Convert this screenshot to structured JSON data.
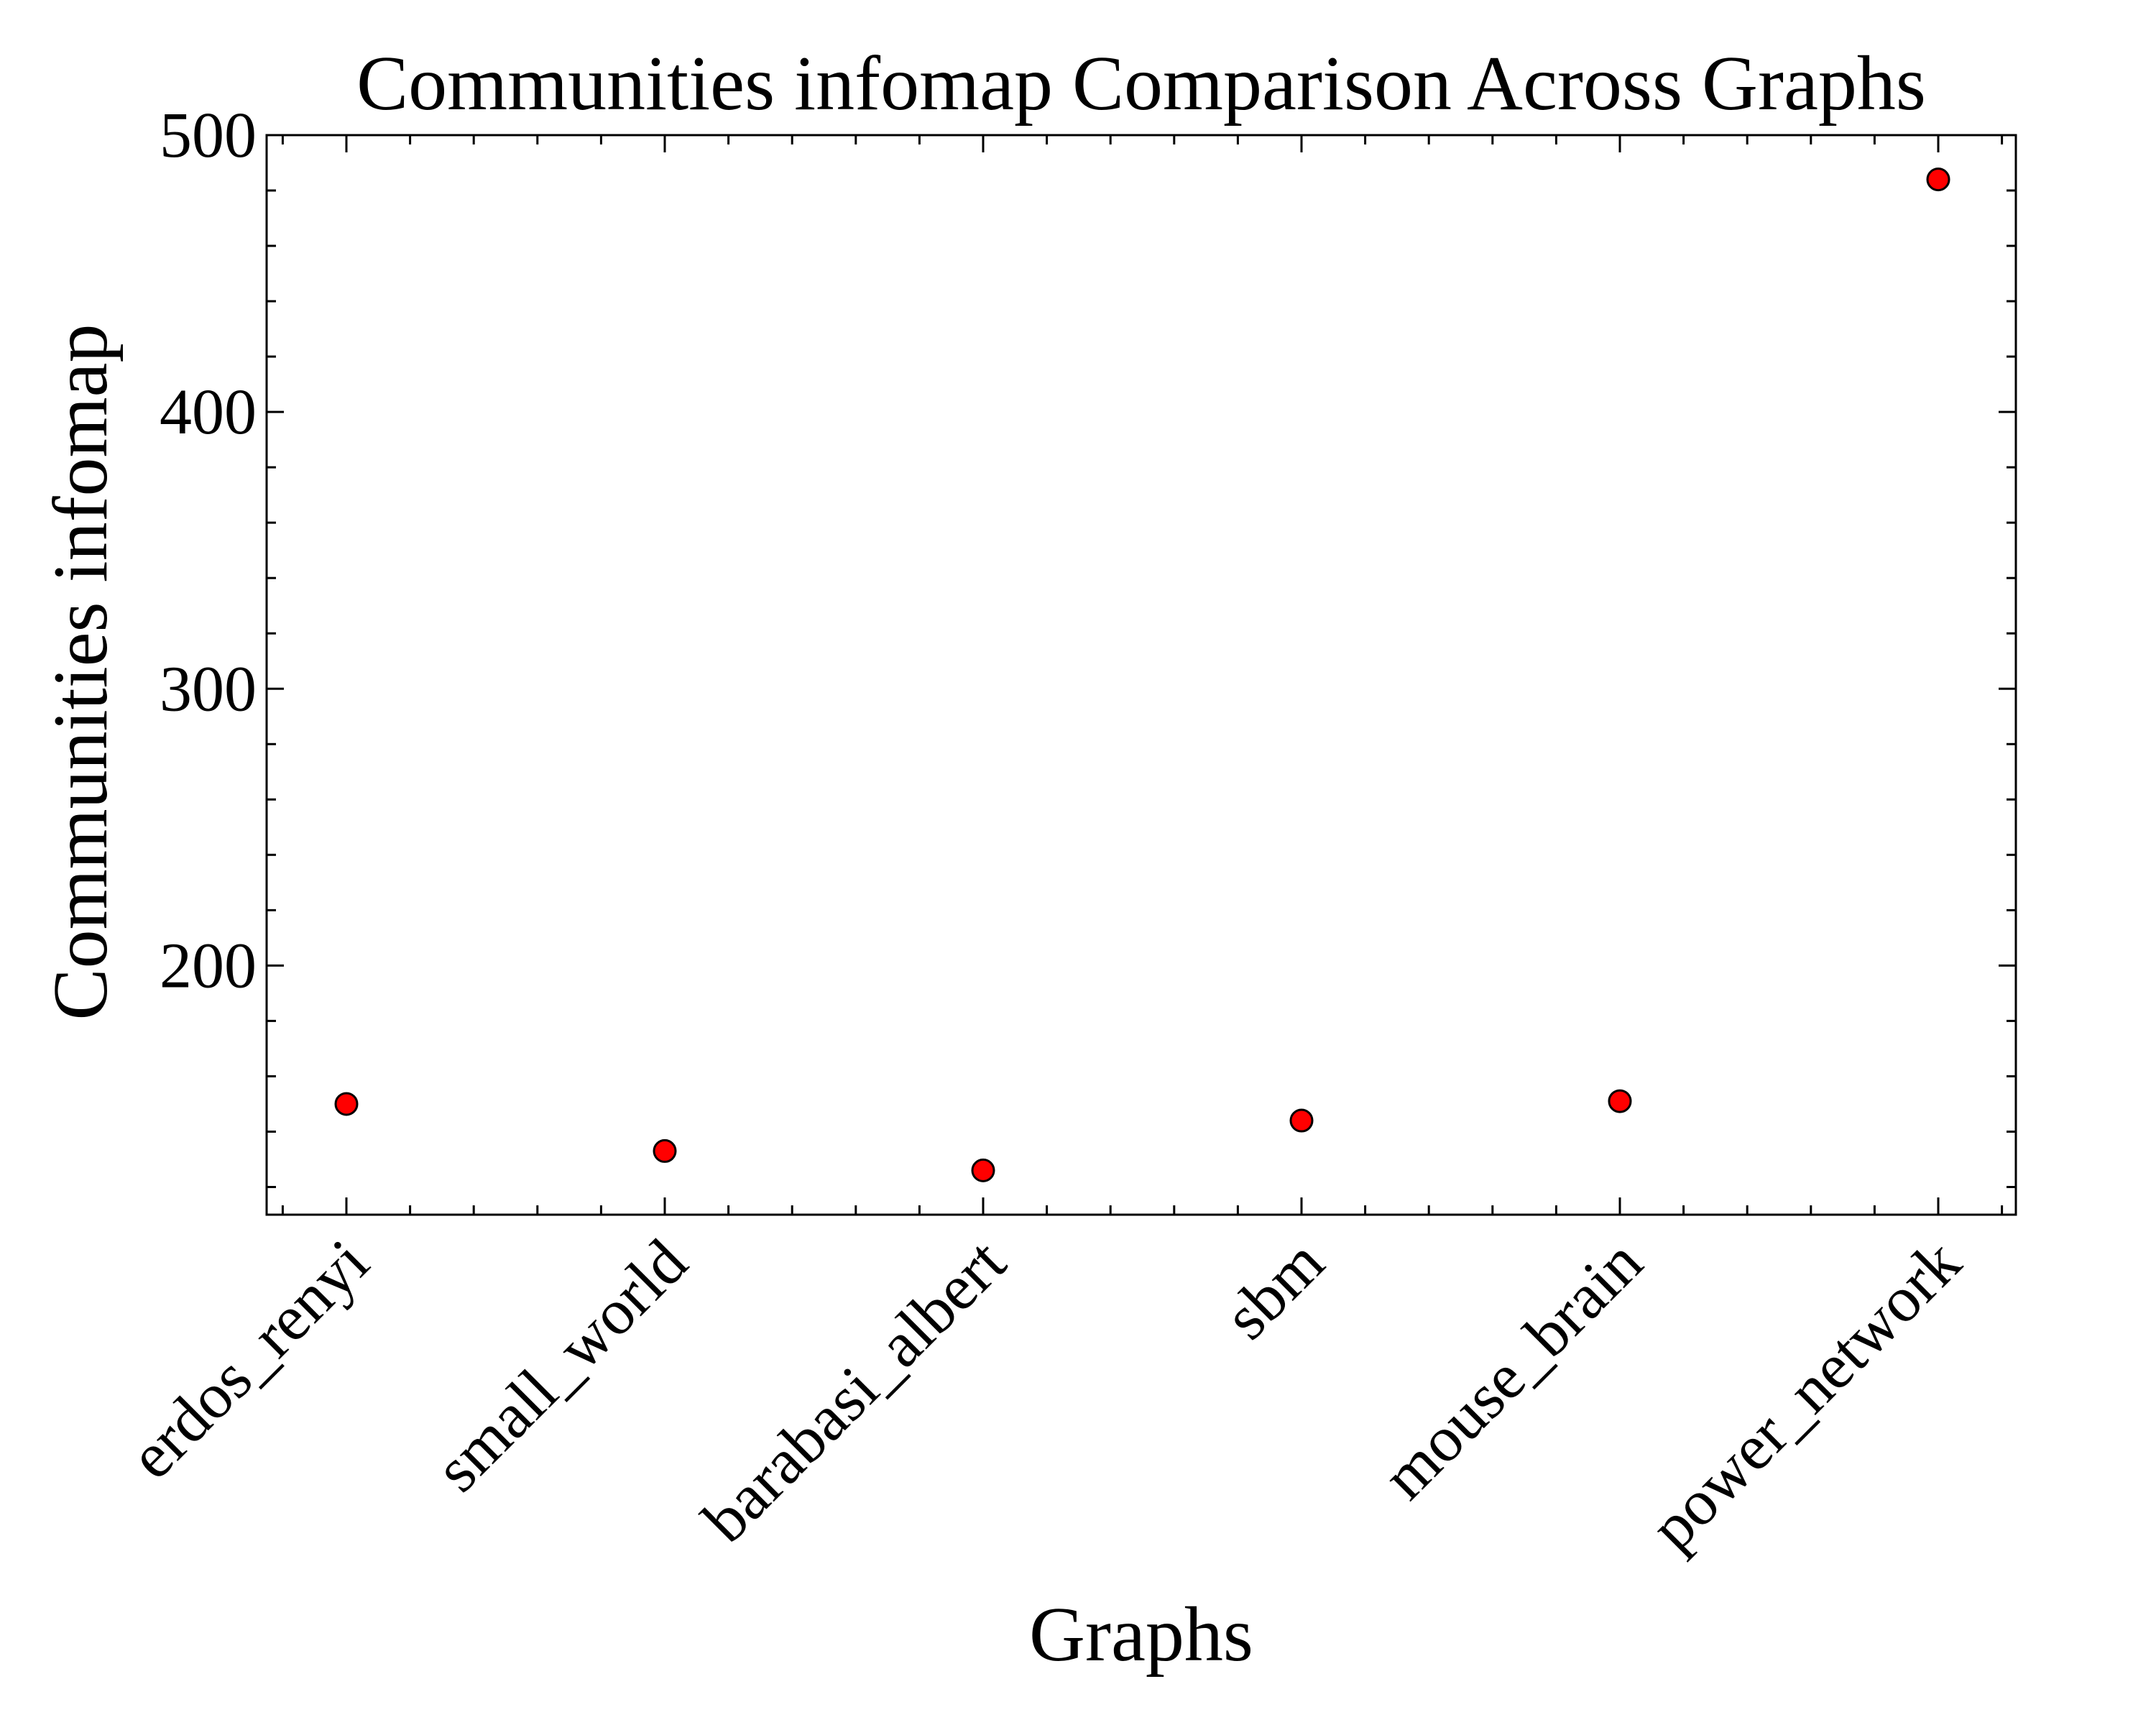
{
  "chart_data": {
    "type": "scatter",
    "title": "Communities infomap Comparison Across Graphs",
    "xlabel": "Graphs",
    "ylabel": "Communities infomap",
    "categories": [
      "erdos_renyi",
      "small_world",
      "barabasi_albert",
      "sbm",
      "mouse_brain",
      "power_network"
    ],
    "values": [
      150,
      133,
      126,
      144,
      151,
      484
    ],
    "ylim": [
      110,
      500
    ],
    "yticks": [
      200,
      300,
      400,
      500
    ],
    "grid": false,
    "legend": "none",
    "marker_color": "#ff0000",
    "marker_edge_color": "#000000"
  }
}
